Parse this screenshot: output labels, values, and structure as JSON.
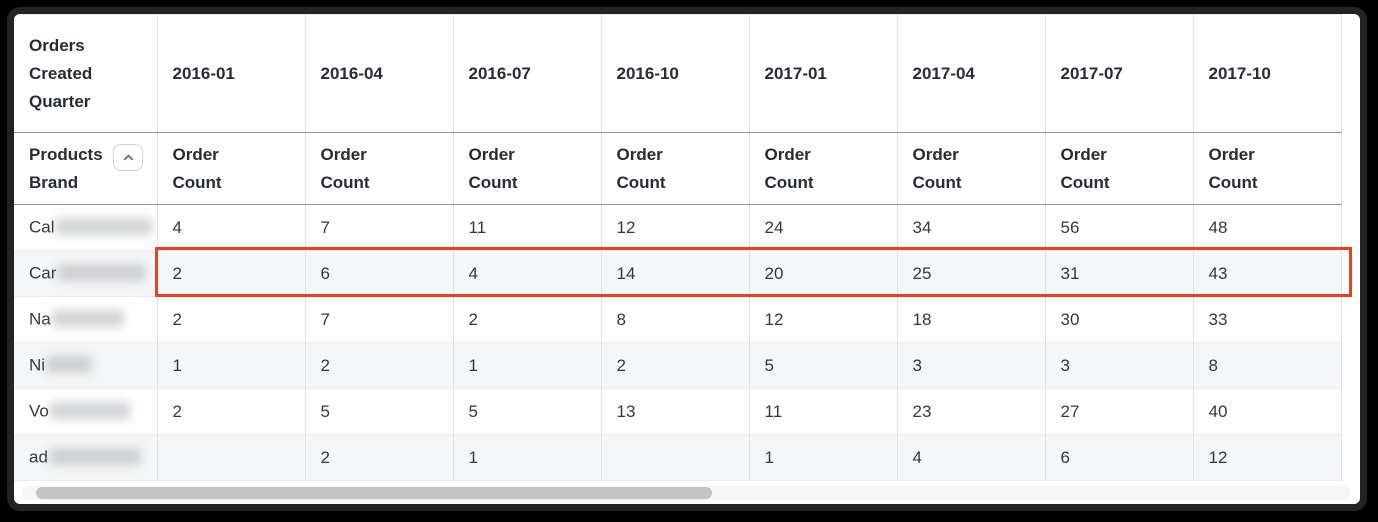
{
  "colors": {
    "highlight_border": "#e8431f",
    "row_stripe": "#f5f6f7",
    "scrollbar_thumb": "#c4c4c4",
    "header_text": "#262d33"
  },
  "table": {
    "corner_header": "Orders Created Quarter",
    "dimension_header": "Products Brand",
    "sort_icon": "chevron-up-icon",
    "measure_label": "Order Count",
    "quarter_columns": [
      "2016-01",
      "2016-04",
      "2016-07",
      "2016-10",
      "2017-01",
      "2017-04",
      "2017-07",
      "2017-10"
    ],
    "rows": [
      {
        "brand_prefix": "Cal",
        "brand_redacted": true,
        "highlighted": false,
        "values": [
          "4",
          "7",
          "11",
          "12",
          "24",
          "34",
          "56",
          "48"
        ]
      },
      {
        "brand_prefix": "Car",
        "brand_redacted": true,
        "highlighted": true,
        "values": [
          "2",
          "6",
          "4",
          "14",
          "20",
          "25",
          "31",
          "43"
        ]
      },
      {
        "brand_prefix": "Na",
        "brand_redacted": true,
        "highlighted": false,
        "values": [
          "2",
          "7",
          "2",
          "8",
          "12",
          "18",
          "30",
          "33"
        ]
      },
      {
        "brand_prefix": "Ni",
        "brand_redacted": true,
        "highlighted": false,
        "values": [
          "1",
          "2",
          "1",
          "2",
          "5",
          "3",
          "3",
          "8"
        ]
      },
      {
        "brand_prefix": "Vo",
        "brand_redacted": true,
        "highlighted": false,
        "values": [
          "2",
          "5",
          "5",
          "13",
          "11",
          "23",
          "27",
          "40"
        ]
      },
      {
        "brand_prefix": "ad",
        "brand_redacted": true,
        "highlighted": false,
        "values": [
          "",
          "2",
          "1",
          "",
          "1",
          "4",
          "6",
          "12"
        ]
      }
    ]
  },
  "scrollbar": {
    "orientation": "horizontal"
  }
}
